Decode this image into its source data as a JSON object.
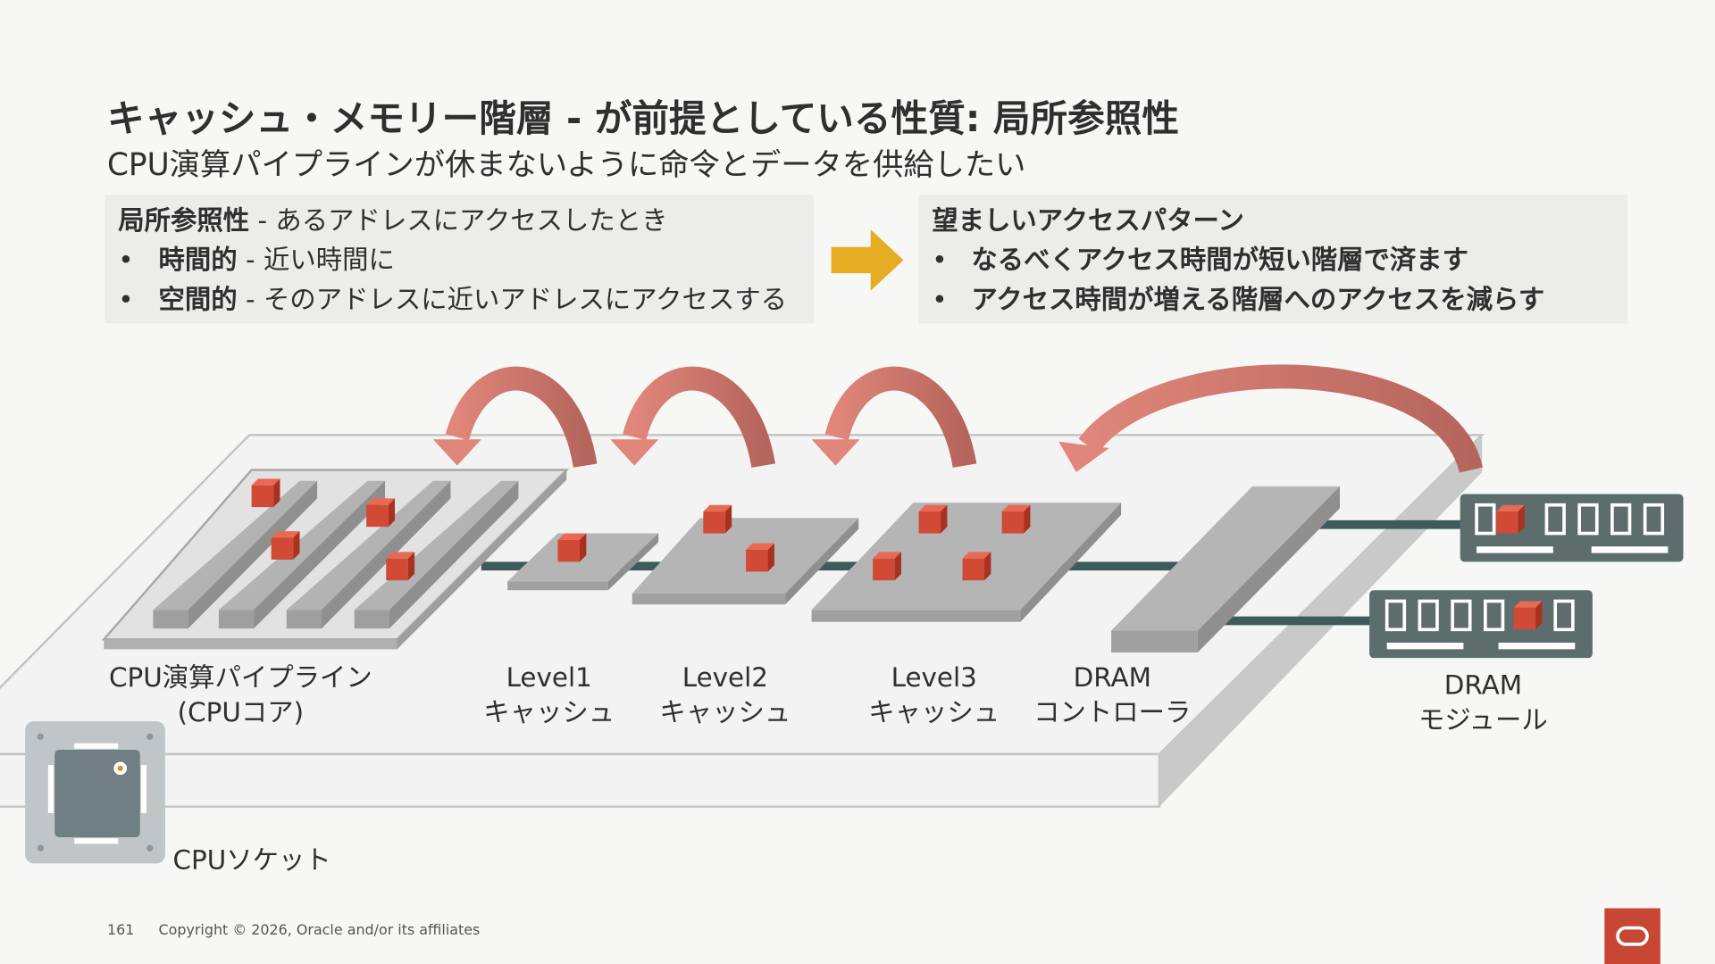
{
  "title": "キャッシュ・メモリー階層 - が前提としている性質: 局所参照性",
  "subtitle": "CPU演算パイプラインが休まないように命令とデータを供給したい",
  "left_box": {
    "heading_bold": "局所参照性",
    "heading_rest": " - あるアドレスにアクセスしたとき",
    "items": [
      {
        "bold": "時間的",
        "rest": " - 近い時間に"
      },
      {
        "bold": "空間的",
        "rest": " - そのアドレスに近いアドレスにアクセスする"
      }
    ]
  },
  "right_box": {
    "heading": "望ましいアクセスパターン",
    "items": [
      "なるべくアクセス時間が短い階層で済ます",
      "アクセス時間が増える階層へのアクセスを減らす"
    ]
  },
  "bullet": "•",
  "labels": {
    "cpu_pipeline": [
      "CPU演算パイプライン",
      "(CPUコア)"
    ],
    "l1": [
      "Level1",
      "キャッシュ"
    ],
    "l2": [
      "Level2",
      "キャッシュ"
    ],
    "l3": [
      "Level3",
      "キャッシュ"
    ],
    "dram_ctrl": [
      "DRAM",
      "コントローラ"
    ],
    "dram_mod": [
      "DRAM",
      "モジュール"
    ],
    "socket": "CPUソケット"
  },
  "footer": {
    "page": "161",
    "copyright": "Copyright © 2026, Oracle and/or its affiliates"
  },
  "colors": {
    "arrow": "#e0867a",
    "cube": "#d04a35",
    "accent_arrow": "#e6ac22",
    "oracle": "#c74634",
    "bus": "#3e5a5a"
  }
}
